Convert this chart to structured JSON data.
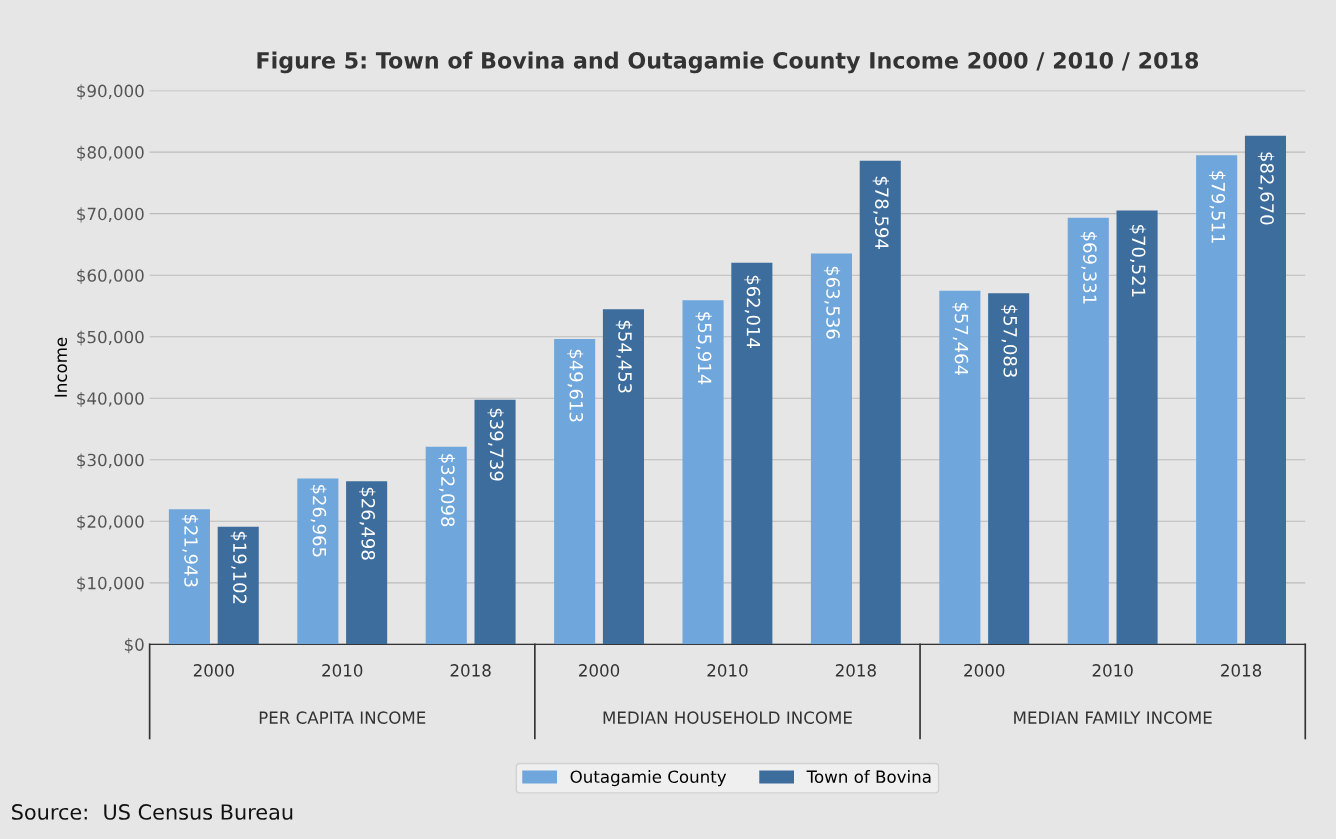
{
  "chart_data": {
    "type": "bar",
    "title": "Figure 5: Town of Bovina and Outagamie County Income 2000 / 2010 / 2018",
    "ylabel": "Income",
    "categories": [
      "2000",
      "2010",
      "2018",
      "2000",
      "2010",
      "2018",
      "2000",
      "2010",
      "2018"
    ],
    "series": [
      {
        "name": "Outagamie County",
        "color": "#6fa6dc",
        "values": [
          21943,
          26965,
          32098,
          49613,
          55914,
          63536,
          57464,
          69331,
          79511
        ],
        "value_labels": [
          "$21,943",
          "$26,965",
          "$32,098",
          "$49,613",
          "$55,914",
          "$63,536",
          "$57,464",
          "$69,331",
          "$79,511"
        ]
      },
      {
        "name": "Town of Bovina",
        "color": "#3d6d9c",
        "values": [
          19102,
          26498,
          39739,
          54453,
          62014,
          78594,
          57083,
          70521,
          82670
        ],
        "value_labels": [
          "$19,102",
          "$26,498",
          "$39,739",
          "$54,453",
          "$62,014",
          "$78,594",
          "$57,083",
          "$70,521",
          "$82,670"
        ]
      }
    ],
    "ylim": [
      0,
      90000
    ],
    "yticks": [
      {
        "value": 0,
        "label": "$0"
      },
      {
        "value": 10000,
        "label": "$10,000"
      },
      {
        "value": 20000,
        "label": "$20,000"
      },
      {
        "value": 30000,
        "label": "$30,000"
      },
      {
        "value": 40000,
        "label": "$40,000"
      },
      {
        "value": 50000,
        "label": "$50,000"
      },
      {
        "value": 60000,
        "label": "$60,000"
      },
      {
        "value": 70000,
        "label": "$70,000"
      },
      {
        "value": 80000,
        "label": "$80,000"
      },
      {
        "value": 90000,
        "label": "$90,000"
      }
    ],
    "grid": "y",
    "legend": "bottom",
    "annotations": [
      "PER CAPITA INCOME",
      "MEDIAN HOUSEHOLD INCOME",
      "MEDIAN FAMILY INCOME",
      "Source:  US Census Bureau"
    ]
  }
}
